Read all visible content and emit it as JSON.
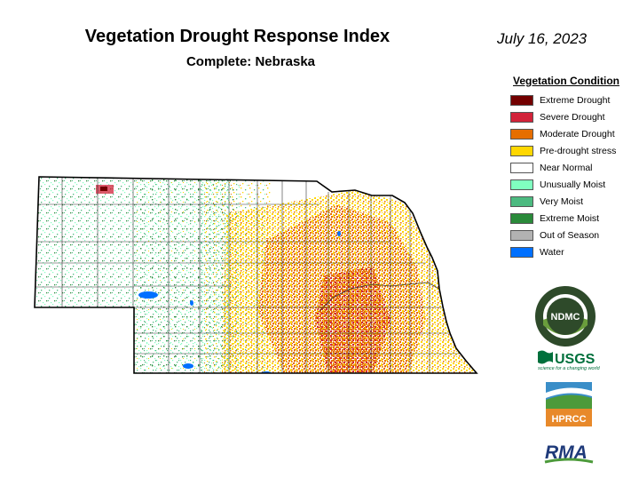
{
  "title": "Vegetation Drought Response Index",
  "subtitle": "Complete: Nebraska",
  "date": "July 16, 2023",
  "legend": {
    "title": "Vegetation Condition",
    "items": [
      {
        "label": "Extreme Drought",
        "color": "#730000"
      },
      {
        "label": "Severe Drought",
        "color": "#d2233a"
      },
      {
        "label": "Moderate Drought",
        "color": "#e66e00"
      },
      {
        "label": "Pre-drought stress",
        "color": "#ffd700"
      },
      {
        "label": "Near Normal",
        "color": "#ffffff"
      },
      {
        "label": "Unusually Moist",
        "color": "#80ffc0"
      },
      {
        "label": "Very Moist",
        "color": "#4cba80"
      },
      {
        "label": "Extreme Moist",
        "color": "#2a8a3a"
      },
      {
        "label": "Out of Season",
        "color": "#b2b2b2"
      },
      {
        "label": "Water",
        "color": "#0070ff"
      }
    ]
  },
  "logos": {
    "ndmc": {
      "label": "NDMC",
      "ring_text": "NATIONAL DROUGHT MITIGATION CENTER · UNIVERSITY OF NEBRASKA"
    },
    "usgs": {
      "label": "USGS",
      "tagline": "science for a changing world"
    },
    "hprcc": {
      "label": "HPRCC"
    },
    "rma": {
      "label": "RMA"
    }
  }
}
